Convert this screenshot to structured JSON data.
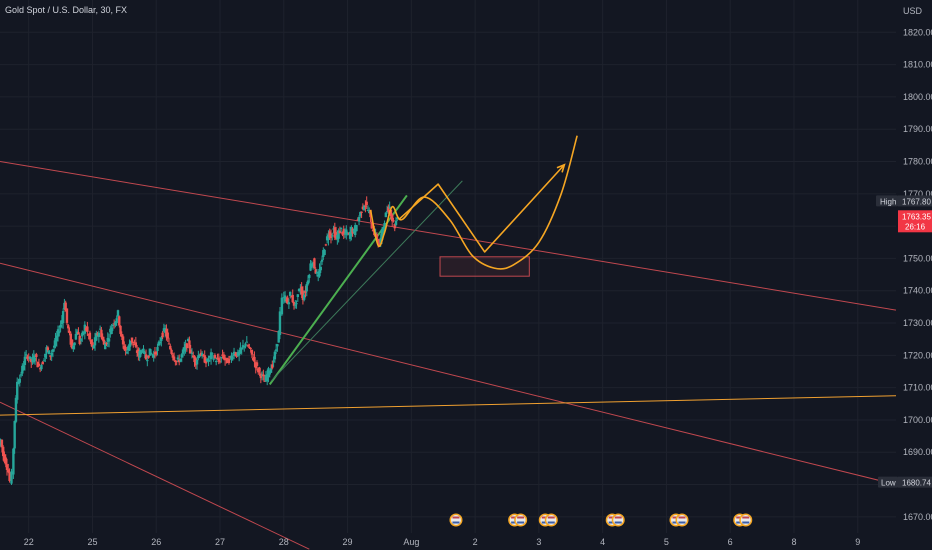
{
  "chart_data": {
    "type": "candlestick",
    "title": "Gold Spot / U.S. Dollar, 30, FX",
    "currency": "USD",
    "y_ticks": [
      1670,
      1680,
      1690,
      1700,
      1710,
      1720,
      1730,
      1740,
      1750,
      1760,
      1770,
      1780,
      1790,
      1800,
      1810,
      1820
    ],
    "y_tick_labels": [
      "1670.00",
      "1680.00",
      "1690.00",
      "1700.00",
      "1710.00",
      "1720.00",
      "1730.00",
      "1740.00",
      "1750.00",
      "1760.00",
      "1770.00",
      "1780.00",
      "1790.00",
      "1800.00",
      "1810.00",
      "1820.00"
    ],
    "ylim": [
      1665,
      1830
    ],
    "x_ticks": [
      {
        "label": "22",
        "t": 0.0
      },
      {
        "label": "25",
        "t": 1.0
      },
      {
        "label": "26",
        "t": 2.0
      },
      {
        "label": "27",
        "t": 3.0
      },
      {
        "label": "28",
        "t": 4.0
      },
      {
        "label": "29",
        "t": 5.0
      },
      {
        "label": "Aug",
        "t": 6.0
      },
      {
        "label": "2",
        "t": 7.0
      },
      {
        "label": "3",
        "t": 8.0
      },
      {
        "label": "4",
        "t": 9.0
      },
      {
        "label": "5",
        "t": 10.0
      },
      {
        "label": "6",
        "t": 11.0
      },
      {
        "label": "8",
        "t": 12.0
      },
      {
        "label": "9",
        "t": 13.0
      }
    ],
    "xlim": [
      -0.45,
      13.6
    ],
    "grid": true,
    "high": {
      "label": "High",
      "value": "1767.80",
      "price": 1767.8
    },
    "current": {
      "value": "1763.35",
      "countdown": "26:16",
      "price": 1763.35
    },
    "low": {
      "label": "Low",
      "value": "1680.74",
      "price": 1680.74
    },
    "price_path": [
      [
        -0.45,
        1692
      ],
      [
        -0.42,
        1694
      ],
      [
        -0.38,
        1689
      ],
      [
        -0.34,
        1687
      ],
      [
        -0.3,
        1684
      ],
      [
        -0.27,
        1681
      ],
      [
        -0.24,
        1683
      ],
      [
        -0.2,
        1700
      ],
      [
        -0.16,
        1712
      ],
      [
        -0.12,
        1713
      ],
      [
        -0.08,
        1716
      ],
      [
        -0.04,
        1719
      ],
      [
        0.0,
        1720
      ],
      [
        0.06,
        1718
      ],
      [
        0.12,
        1720
      ],
      [
        0.18,
        1716
      ],
      [
        0.24,
        1718
      ],
      [
        0.3,
        1722
      ],
      [
        0.36,
        1720
      ],
      [
        0.42,
        1723
      ],
      [
        0.48,
        1727
      ],
      [
        0.54,
        1731
      ],
      [
        0.58,
        1737
      ],
      [
        0.62,
        1730
      ],
      [
        0.66,
        1726
      ],
      [
        0.7,
        1722
      ],
      [
        0.74,
        1725
      ],
      [
        0.78,
        1728
      ],
      [
        0.82,
        1724
      ],
      [
        0.86,
        1726
      ],
      [
        0.9,
        1729
      ],
      [
        0.96,
        1726
      ],
      [
        1.02,
        1722
      ],
      [
        1.08,
        1726
      ],
      [
        1.14,
        1728
      ],
      [
        1.2,
        1723
      ],
      [
        1.26,
        1725
      ],
      [
        1.32,
        1729
      ],
      [
        1.38,
        1731
      ],
      [
        1.42,
        1733
      ],
      [
        1.46,
        1727
      ],
      [
        1.5,
        1723
      ],
      [
        1.56,
        1721
      ],
      [
        1.62,
        1725
      ],
      [
        1.68,
        1723
      ],
      [
        1.74,
        1720
      ],
      [
        1.8,
        1722
      ],
      [
        1.86,
        1719
      ],
      [
        1.92,
        1721
      ],
      [
        1.98,
        1720
      ],
      [
        2.04,
        1722
      ],
      [
        2.1,
        1726
      ],
      [
        2.16,
        1728
      ],
      [
        2.22,
        1723
      ],
      [
        2.28,
        1720
      ],
      [
        2.34,
        1718
      ],
      [
        2.4,
        1719
      ],
      [
        2.46,
        1722
      ],
      [
        2.52,
        1724
      ],
      [
        2.58,
        1720
      ],
      [
        2.64,
        1718
      ],
      [
        2.7,
        1721
      ],
      [
        2.76,
        1719
      ],
      [
        2.82,
        1718
      ],
      [
        2.88,
        1720
      ],
      [
        2.94,
        1719
      ],
      [
        3.0,
        1718
      ],
      [
        3.06,
        1720
      ],
      [
        3.12,
        1718
      ],
      [
        3.18,
        1719
      ],
      [
        3.24,
        1721
      ],
      [
        3.3,
        1720
      ],
      [
        3.36,
        1722
      ],
      [
        3.42,
        1724
      ],
      [
        3.48,
        1722
      ],
      [
        3.54,
        1719
      ],
      [
        3.6,
        1716
      ],
      [
        3.66,
        1714
      ],
      [
        3.72,
        1712
      ],
      [
        3.78,
        1715
      ],
      [
        3.84,
        1717
      ],
      [
        3.9,
        1722
      ],
      [
        3.94,
        1727
      ],
      [
        3.97,
        1733
      ],
      [
        4.0,
        1737
      ],
      [
        4.04,
        1738
      ],
      [
        4.08,
        1736
      ],
      [
        4.12,
        1739
      ],
      [
        4.16,
        1737
      ],
      [
        4.2,
        1735
      ],
      [
        4.24,
        1739
      ],
      [
        4.28,
        1741
      ],
      [
        4.32,
        1738
      ],
      [
        4.36,
        1740
      ],
      [
        4.4,
        1744
      ],
      [
        4.44,
        1748
      ],
      [
        4.48,
        1749
      ],
      [
        4.52,
        1746
      ],
      [
        4.56,
        1744
      ],
      [
        4.6,
        1748
      ],
      [
        4.64,
        1752
      ],
      [
        4.68,
        1755
      ],
      [
        4.72,
        1758
      ],
      [
        4.76,
        1757
      ],
      [
        4.8,
        1759
      ],
      [
        4.84,
        1756
      ],
      [
        4.88,
        1758
      ],
      [
        4.92,
        1759
      ],
      [
        4.96,
        1757
      ],
      [
        5.0,
        1758
      ],
      [
        5.04,
        1757
      ],
      [
        5.08,
        1759
      ],
      [
        5.12,
        1758
      ],
      [
        5.16,
        1761
      ],
      [
        5.2,
        1763
      ],
      [
        5.24,
        1765
      ],
      [
        5.28,
        1767
      ],
      [
        5.32,
        1766
      ],
      [
        5.36,
        1764
      ],
      [
        5.4,
        1760
      ],
      [
        5.44,
        1758
      ],
      [
        5.48,
        1756
      ],
      [
        5.52,
        1754
      ],
      [
        5.56,
        1758
      ],
      [
        5.6,
        1762
      ],
      [
        5.64,
        1765
      ],
      [
        5.68,
        1766
      ],
      [
        5.72,
        1762
      ],
      [
        5.76,
        1760
      ],
      [
        5.8,
        1763.35
      ]
    ],
    "drawings": [
      {
        "name": "resistance-line-upper",
        "kind": "line",
        "color": "#c1484f",
        "points": [
          [
            -0.45,
            1780
          ],
          [
            13.6,
            1734
          ]
        ]
      },
      {
        "name": "resistance-line-middle",
        "kind": "line",
        "color": "#c1484f",
        "points": [
          [
            -0.45,
            1748.5
          ],
          [
            13.6,
            1680
          ]
        ]
      },
      {
        "name": "resistance-line-lower",
        "kind": "line",
        "color": "#c1484f",
        "points": [
          [
            -0.45,
            1705.5
          ],
          [
            4.4,
            1660
          ]
        ]
      },
      {
        "name": "horizontal-support-line",
        "kind": "line",
        "color": "#f0a030",
        "points": [
          [
            -0.45,
            1701.5
          ],
          [
            13.6,
            1707.5
          ]
        ]
      },
      {
        "name": "trend-line-green",
        "kind": "line",
        "color": "#4caf50",
        "points": [
          [
            3.78,
            1711
          ],
          [
            5.93,
            1769.5
          ]
        ]
      },
      {
        "name": "trend-line-thin",
        "kind": "line",
        "color": "#3d7a5a",
        "points": [
          [
            3.8,
            1712
          ],
          [
            6.8,
            1774
          ]
        ]
      },
      {
        "name": "projection-zigzag",
        "kind": "polyline",
        "color": "#f5a623",
        "points": [
          [
            5.8,
            1762
          ],
          [
            6.42,
            1773
          ],
          [
            7.15,
            1752
          ],
          [
            8.4,
            1779
          ]
        ]
      },
      {
        "name": "projection-curve",
        "kind": "curve",
        "color": "#f5a623",
        "points": [
          [
            5.36,
            1765
          ],
          [
            5.48,
            1754
          ],
          [
            5.58,
            1758
          ],
          [
            5.7,
            1766
          ],
          [
            5.85,
            1762
          ],
          [
            6.2,
            1769
          ],
          [
            6.6,
            1762
          ],
          [
            6.95,
            1751
          ],
          [
            7.3,
            1747
          ],
          [
            7.6,
            1748
          ],
          [
            8.0,
            1755
          ],
          [
            8.35,
            1770
          ],
          [
            8.6,
            1788
          ]
        ]
      }
    ],
    "target_zone": {
      "x": [
        6.45,
        7.85
      ],
      "y": [
        1744.5,
        1750.5
      ],
      "color": "#c1484f"
    },
    "event_markers": [
      {
        "t": 6.7,
        "count": 1
      },
      {
        "t": 7.62,
        "count": 2
      },
      {
        "t": 8.1,
        "count": 2
      },
      {
        "t": 9.15,
        "count": 2
      },
      {
        "t": 10.15,
        "count": 2
      },
      {
        "t": 11.15,
        "count": 2
      }
    ],
    "colors": {
      "background": "#131722",
      "grid": "#1e222d",
      "up": "#26a69a",
      "down": "#ef5350",
      "axis_text": "#b2b5be",
      "high_tag": "#2a2e39",
      "current_tag": "#f23645",
      "low_tag": "#2a2e39"
    }
  }
}
